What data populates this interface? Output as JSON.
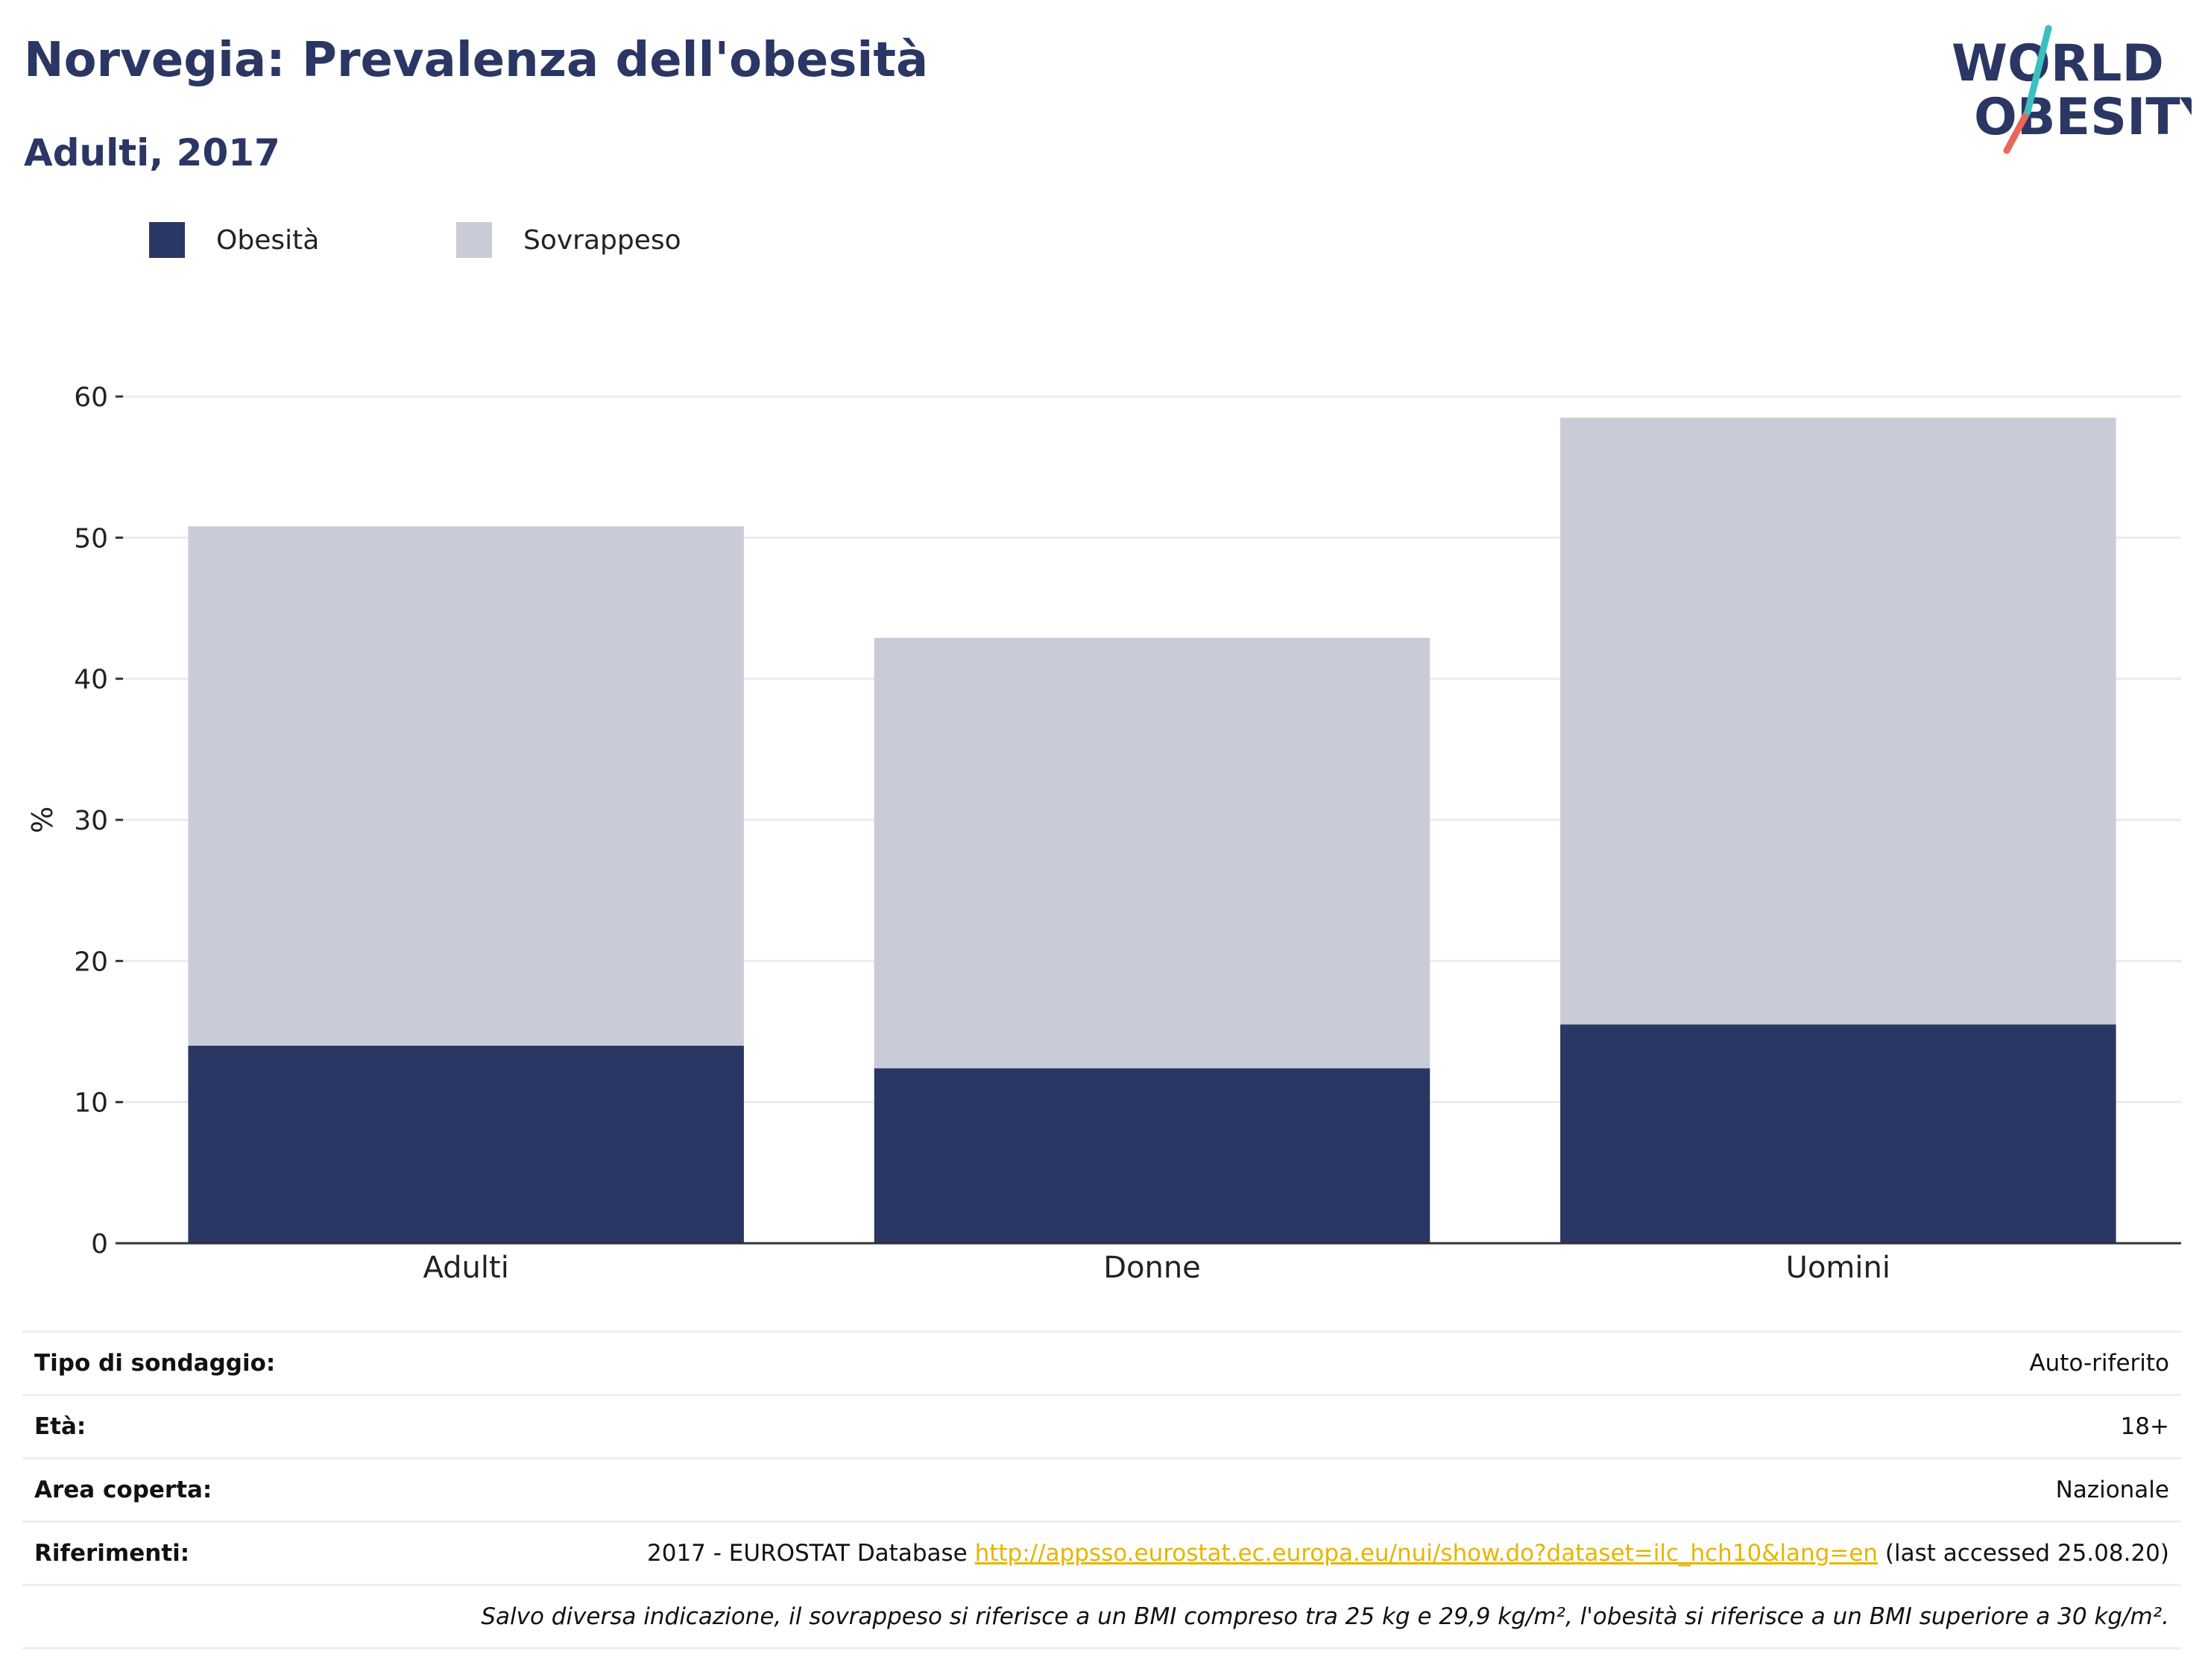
{
  "header": {
    "title": "Norvegia: Prevalenza dell'obesità",
    "subtitle": "Adulti, 2017"
  },
  "logo": {
    "line1": "WORLD",
    "line2": "OBESITY",
    "colors": {
      "text": "#2a3663",
      "teal": "#3bbfbf",
      "coral": "#e8685a"
    }
  },
  "legend": [
    {
      "label": "Obesità",
      "color": "#2a3663"
    },
    {
      "label": "Sovrappeso",
      "color": "#c9cbd7"
    }
  ],
  "chart_data": {
    "type": "bar",
    "stacked": true,
    "categories": [
      "Adulti",
      "Donne",
      "Uomini"
    ],
    "series": [
      {
        "name": "Obesità",
        "values": [
          14.0,
          12.4,
          15.5
        ],
        "color": "#2a3663"
      },
      {
        "name": "Sovrappeso",
        "values": [
          36.8,
          30.5,
          43.0
        ],
        "color": "#c9cbd7"
      }
    ],
    "ylabel": "%",
    "ylim": [
      0,
      60
    ],
    "yticks": [
      0,
      10,
      20,
      30,
      40,
      50,
      60
    ],
    "grid": true,
    "legend_position": "top-left"
  },
  "info": {
    "rows": [
      {
        "label": "Tipo di sondaggio:",
        "value": "Auto-riferito"
      },
      {
        "label": "Età:",
        "value": "18+"
      },
      {
        "label": "Area coperta:",
        "value": "Nazionale"
      }
    ],
    "references": {
      "label": "Riferimenti:",
      "prefix": "2017 - EUROSTAT Database ",
      "link": "http://appsso.eurostat.ec.europa.eu/nui/show.do?dataset=ilc_hch10&lang=en",
      "suffix": " (last accessed 25.08.20)"
    },
    "note": "Salvo diversa indicazione, il sovrappeso si riferisce a un BMI compreso tra 25 kg e 29,9 kg/m², l'obesità si riferisce a un BMI superiore a 30 kg/m²."
  }
}
